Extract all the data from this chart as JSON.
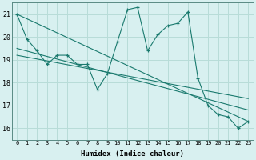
{
  "xlabel": "Humidex (Indice chaleur)",
  "bg_color": "#d8f0f0",
  "line_color": "#1a7a6e",
  "grid_color": "#b8dcd8",
  "xlim": [
    -0.5,
    23.5
  ],
  "ylim": [
    15.5,
    21.5
  ],
  "xticks": [
    0,
    1,
    2,
    3,
    4,
    5,
    6,
    7,
    8,
    9,
    10,
    11,
    12,
    13,
    14,
    15,
    16,
    17,
    18,
    19,
    20,
    21,
    22,
    23
  ],
  "yticks": [
    16,
    17,
    18,
    19,
    20,
    21
  ],
  "main_x": [
    0,
    1,
    2,
    3,
    4,
    5,
    6,
    7,
    8,
    9,
    10,
    11,
    12,
    13,
    14,
    15,
    16,
    17,
    18,
    19,
    20,
    21,
    22,
    23
  ],
  "main_y": [
    21.0,
    19.9,
    19.4,
    18.8,
    19.2,
    19.2,
    18.8,
    18.8,
    17.7,
    18.4,
    19.8,
    21.2,
    21.3,
    19.4,
    20.1,
    20.5,
    20.6,
    21.1,
    18.2,
    17.0,
    16.6,
    16.5,
    16.0,
    16.3
  ],
  "trend1_x": [
    0,
    23
  ],
  "trend1_y": [
    21.0,
    16.3
  ],
  "trend2_x": [
    0,
    23
  ],
  "trend2_y": [
    19.5,
    16.8
  ],
  "trend3_x": [
    0,
    23
  ],
  "trend3_y": [
    19.2,
    17.3
  ]
}
